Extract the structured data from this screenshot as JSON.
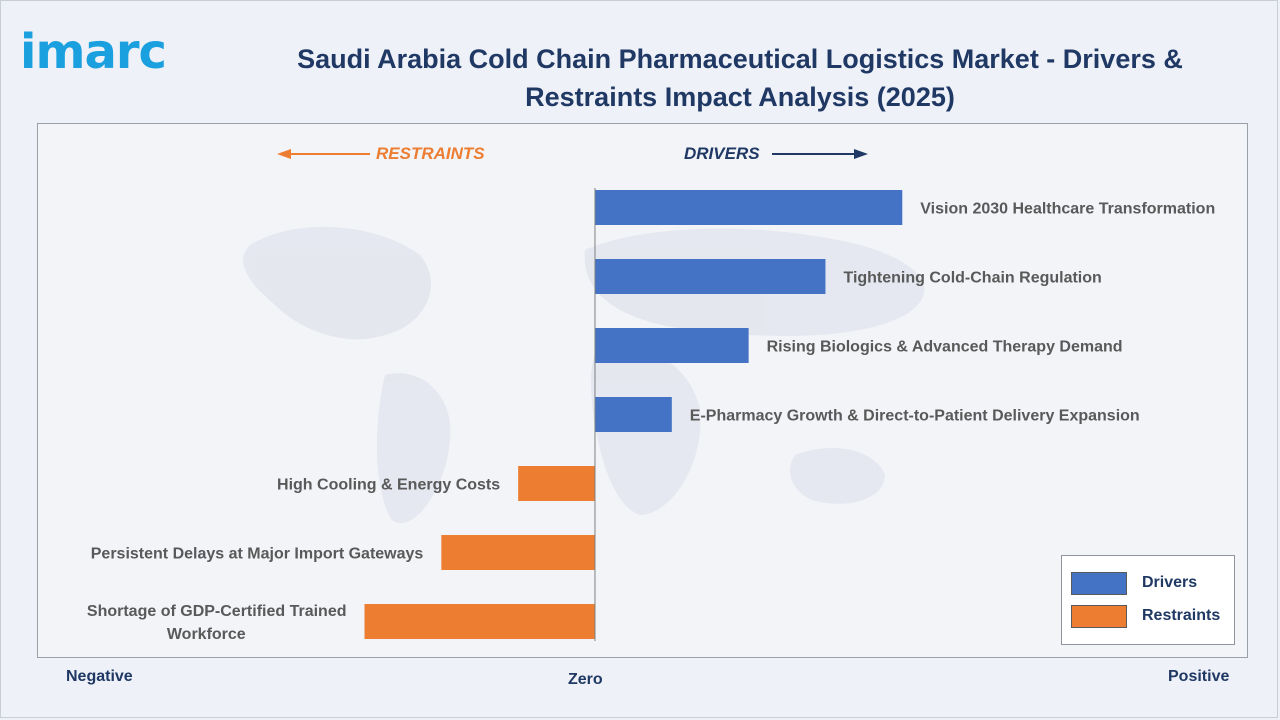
{
  "header": {
    "logo_text": "imarc",
    "title_line1": "Saudi Arabia Cold Chain Pharmaceutical Logistics Market - Drivers &",
    "title_line2": "Restraints Impact Analysis (2025)"
  },
  "labels": {
    "restraints": "RESTRAINTS",
    "drivers": "DRIVERS",
    "negative": "Negative",
    "zero": "Zero",
    "positive": "Positive"
  },
  "legend": [
    {
      "label": "Drivers",
      "color": "#4472c4"
    },
    {
      "label": "Restraints",
      "color": "#ed7d31"
    }
  ],
  "colors": {
    "driver": "#4472c4",
    "restraint": "#ed7d31",
    "title": "#1f3864",
    "bar_label": "#595959",
    "logo": "#1aa0de"
  },
  "chart_data": {
    "type": "bar",
    "orientation": "horizontal",
    "title": "Saudi Arabia Cold Chain Pharmaceutical Logistics Market - Drivers & Restraints Impact Analysis (2025)",
    "categories": [
      "Vision 2030 Healthcare Transformation",
      "Tightening Cold-Chain Regulation",
      "Rising Biologics & Advanced Therapy Demand",
      "E-Pharmacy Growth & Direct-to-Patient Delivery Expansion",
      "High Cooling & Energy Costs",
      "Persistent Delays at Major Import Gateways",
      "Shortage of GDP-Certified Trained Workforce"
    ],
    "values": [
      4,
      3,
      2,
      1,
      -1,
      -2,
      -3
    ],
    "groups": [
      "Drivers",
      "Drivers",
      "Drivers",
      "Drivers",
      "Restraints",
      "Restraints",
      "Restraints"
    ],
    "xlim": [
      -7.25,
      8.5
    ],
    "grid": false,
    "legend_position": "bottom-right"
  }
}
